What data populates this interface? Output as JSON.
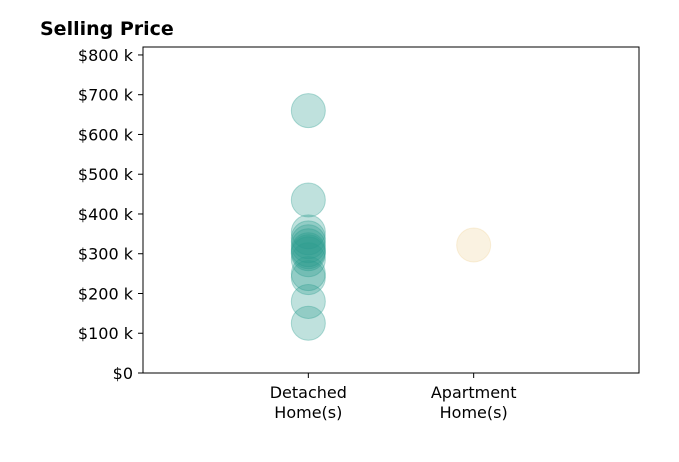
{
  "chart_data": {
    "type": "scatter",
    "title": "Selling Price",
    "xlabel": "",
    "ylabel": "",
    "categories": [
      "Detached\nHome(s)",
      "Apartment\nHome(s)"
    ],
    "xlim": [
      0,
      3
    ],
    "ylim": [
      0,
      820
    ],
    "y_ticks": [
      0,
      100,
      200,
      300,
      400,
      500,
      600,
      700,
      800
    ],
    "y_tick_labels": [
      "$0",
      "$100 k",
      "$200 k",
      "$300 k",
      "$400 k",
      "$500 k",
      "$600 k",
      "$700 k",
      "$800 k"
    ],
    "grid": false,
    "series": [
      {
        "category": "Detached\nHome(s)",
        "color": "#2a9d8f",
        "values": [
          660,
          435,
          355,
          340,
          330,
          320,
          310,
          305,
          300,
          285,
          250,
          240,
          180,
          125
        ]
      },
      {
        "category": "Apartment\nHome(s)",
        "color": "#f0d49a",
        "values": [
          322
        ]
      }
    ]
  }
}
